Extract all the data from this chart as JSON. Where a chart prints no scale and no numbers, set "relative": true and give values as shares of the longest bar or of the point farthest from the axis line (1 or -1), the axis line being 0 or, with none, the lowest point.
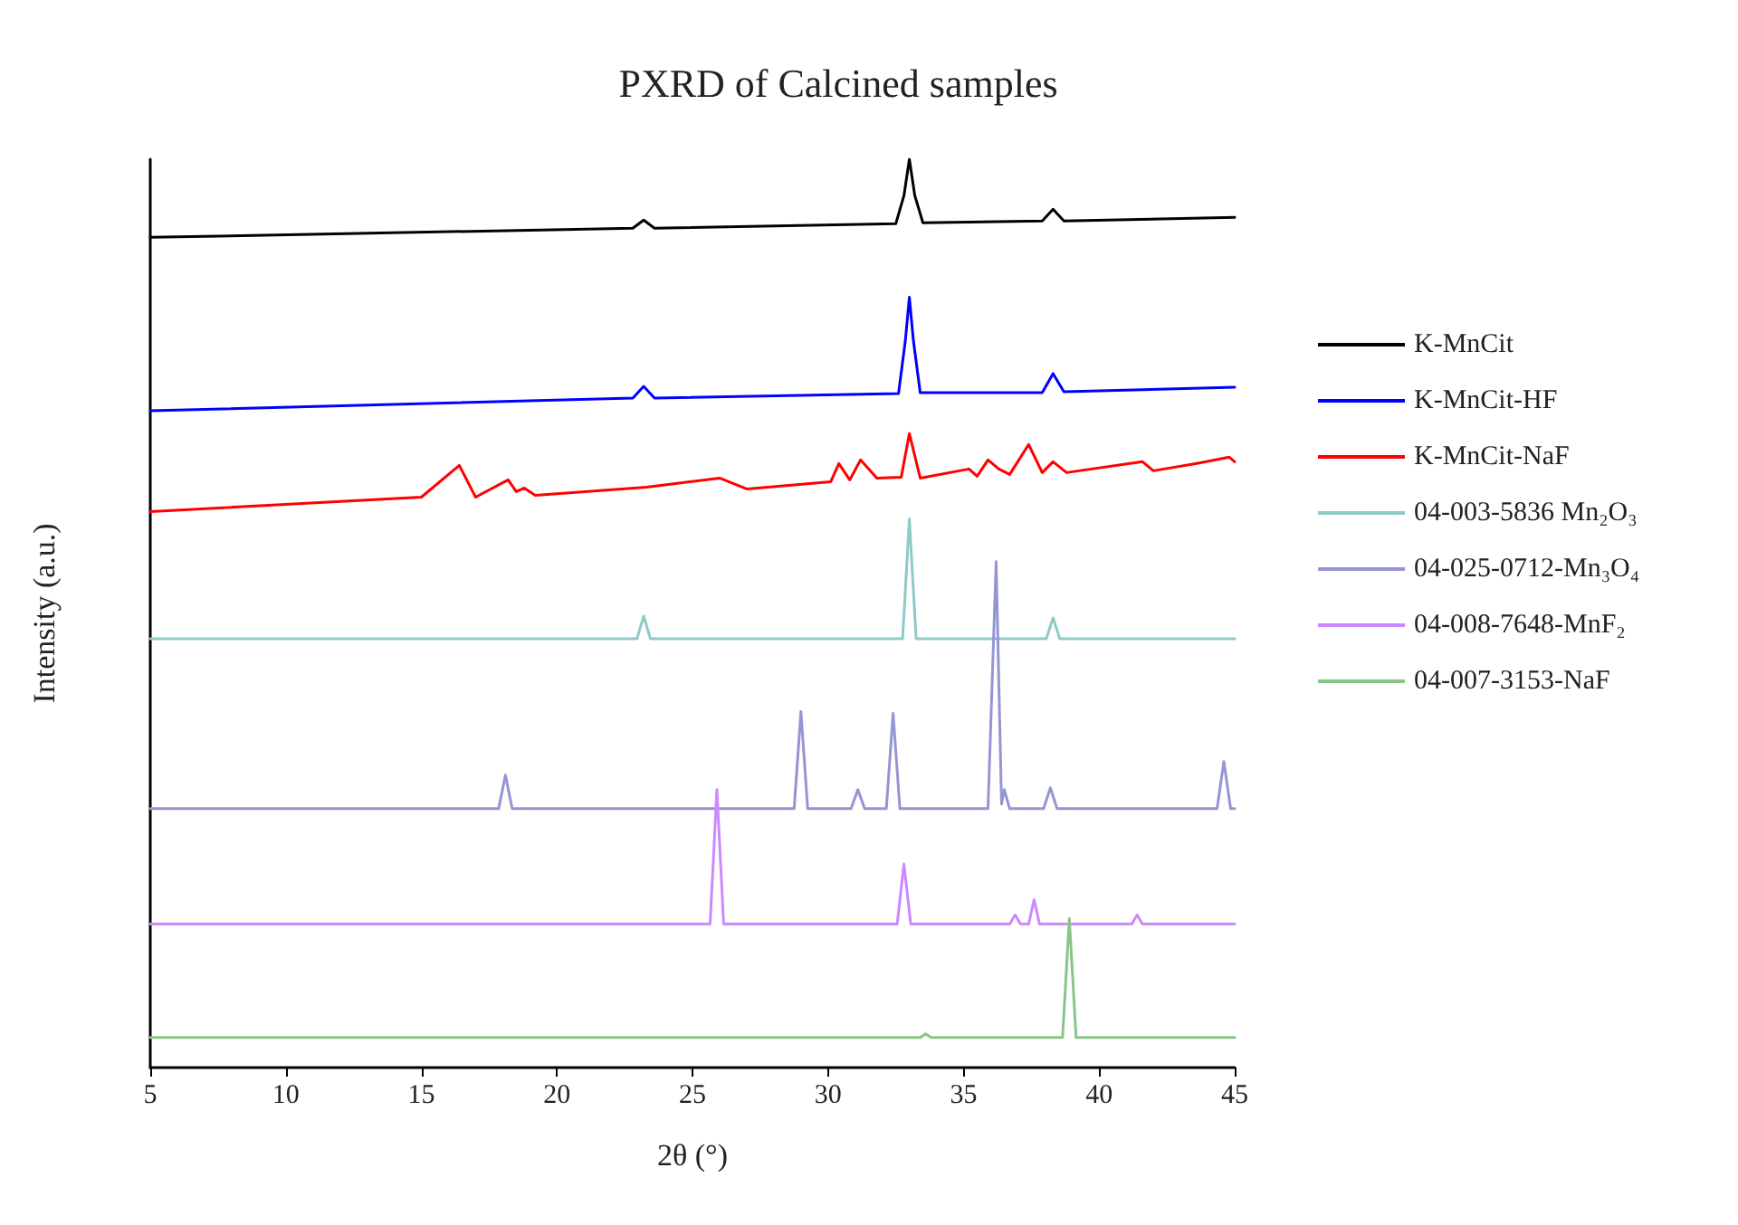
{
  "chart_data": {
    "type": "line",
    "title": "PXRD of Calcined samples",
    "xlabel": "2θ (°)",
    "ylabel": "Intensity (a.u.)",
    "relative": true,
    "xlim": [
      5,
      45
    ],
    "xticks": [
      5,
      10,
      15,
      20,
      25,
      30,
      35,
      40,
      45
    ],
    "legend": "right",
    "grid": false,
    "marker": "none",
    "line_style": "solid",
    "series": [
      {
        "name": "K-MnCit",
        "color": "#000000",
        "x": [
          5,
          22.8,
          23.2,
          23.6,
          32.5,
          32.8,
          33.0,
          33.2,
          33.5,
          37.9,
          38.3,
          38.7,
          45
        ],
        "values": [
          0.914,
          0.924,
          0.933,
          0.924,
          0.929,
          0.96,
          1.0,
          0.96,
          0.93,
          0.932,
          0.945,
          0.932,
          0.936
        ]
      },
      {
        "name": "K-MnCit-HF",
        "color": "#0000ff",
        "x": [
          5,
          22.8,
          23.2,
          23.6,
          32.6,
          32.85,
          33.0,
          33.15,
          33.4,
          37.9,
          38.3,
          38.7,
          45
        ],
        "values": [
          0.723,
          0.737,
          0.75,
          0.737,
          0.742,
          0.8,
          0.848,
          0.8,
          0.743,
          0.743,
          0.764,
          0.744,
          0.749
        ]
      },
      {
        "name": "K-MnCit-NaF",
        "color": "#ff0000",
        "x": [
          5,
          15,
          16.4,
          17,
          18.2,
          18.5,
          18.8,
          19.2,
          23.3,
          26,
          27,
          30.1,
          30.4,
          30.8,
          31.2,
          31.8,
          32.7,
          33.0,
          33.4,
          35.2,
          35.5,
          35.9,
          36.3,
          36.7,
          37.4,
          37.9,
          38.3,
          38.8,
          41.6,
          42,
          43.6,
          44.8,
          45
        ],
        "values": [
          0.612,
          0.628,
          0.663,
          0.628,
          0.647,
          0.634,
          0.638,
          0.63,
          0.639,
          0.649,
          0.637,
          0.645,
          0.665,
          0.647,
          0.669,
          0.649,
          0.65,
          0.698,
          0.649,
          0.659,
          0.651,
          0.669,
          0.659,
          0.653,
          0.686,
          0.655,
          0.667,
          0.655,
          0.667,
          0.657,
          0.665,
          0.672,
          0.667
        ]
      },
      {
        "name": "04-003-5836 Mn₂O₃",
        "color": "#8ecac6",
        "x": [
          5,
          22.95,
          23.2,
          23.45,
          32.75,
          33.0,
          33.25,
          38.05,
          38.3,
          38.55,
          45
        ],
        "values": [
          0.472,
          0.472,
          0.497,
          0.472,
          0.472,
          0.604,
          0.472,
          0.472,
          0.495,
          0.472,
          0.472
        ]
      },
      {
        "name": "04-025-0712-Mn₃O₄",
        "color": "#9595d4",
        "x": [
          5,
          17.85,
          18.1,
          18.35,
          28.75,
          29.0,
          29.25,
          30.85,
          31.1,
          31.35,
          32.15,
          32.4,
          32.65,
          35.9,
          36.2,
          36.4,
          36.5,
          36.7,
          37.95,
          38.2,
          38.45,
          44.35,
          44.6,
          44.85,
          45
        ],
        "values": [
          0.285,
          0.285,
          0.322,
          0.285,
          0.285,
          0.392,
          0.285,
          0.285,
          0.306,
          0.285,
          0.285,
          0.39,
          0.285,
          0.285,
          0.557,
          0.29,
          0.306,
          0.285,
          0.285,
          0.308,
          0.285,
          0.285,
          0.337,
          0.285,
          0.285
        ]
      },
      {
        "name": "04-008-7648-MnF₂",
        "color": "#cc88ff",
        "x": [
          5,
          25.65,
          25.9,
          26.15,
          32.55,
          32.8,
          33.05,
          36.7,
          36.9,
          37.1,
          37.4,
          37.6,
          37.8,
          41.2,
          41.4,
          41.6,
          45
        ],
        "values": [
          0.158,
          0.158,
          0.306,
          0.158,
          0.158,
          0.224,
          0.158,
          0.158,
          0.168,
          0.158,
          0.158,
          0.185,
          0.158,
          0.158,
          0.168,
          0.158,
          0.158
        ]
      },
      {
        "name": "04-007-3153-NaF",
        "color": "#88c488",
        "x": [
          5,
          33.4,
          33.6,
          33.8,
          38.65,
          38.9,
          39.15,
          45
        ],
        "values": [
          0.033,
          0.033,
          0.037,
          0.033,
          0.033,
          0.164,
          0.033,
          0.033
        ]
      }
    ]
  }
}
